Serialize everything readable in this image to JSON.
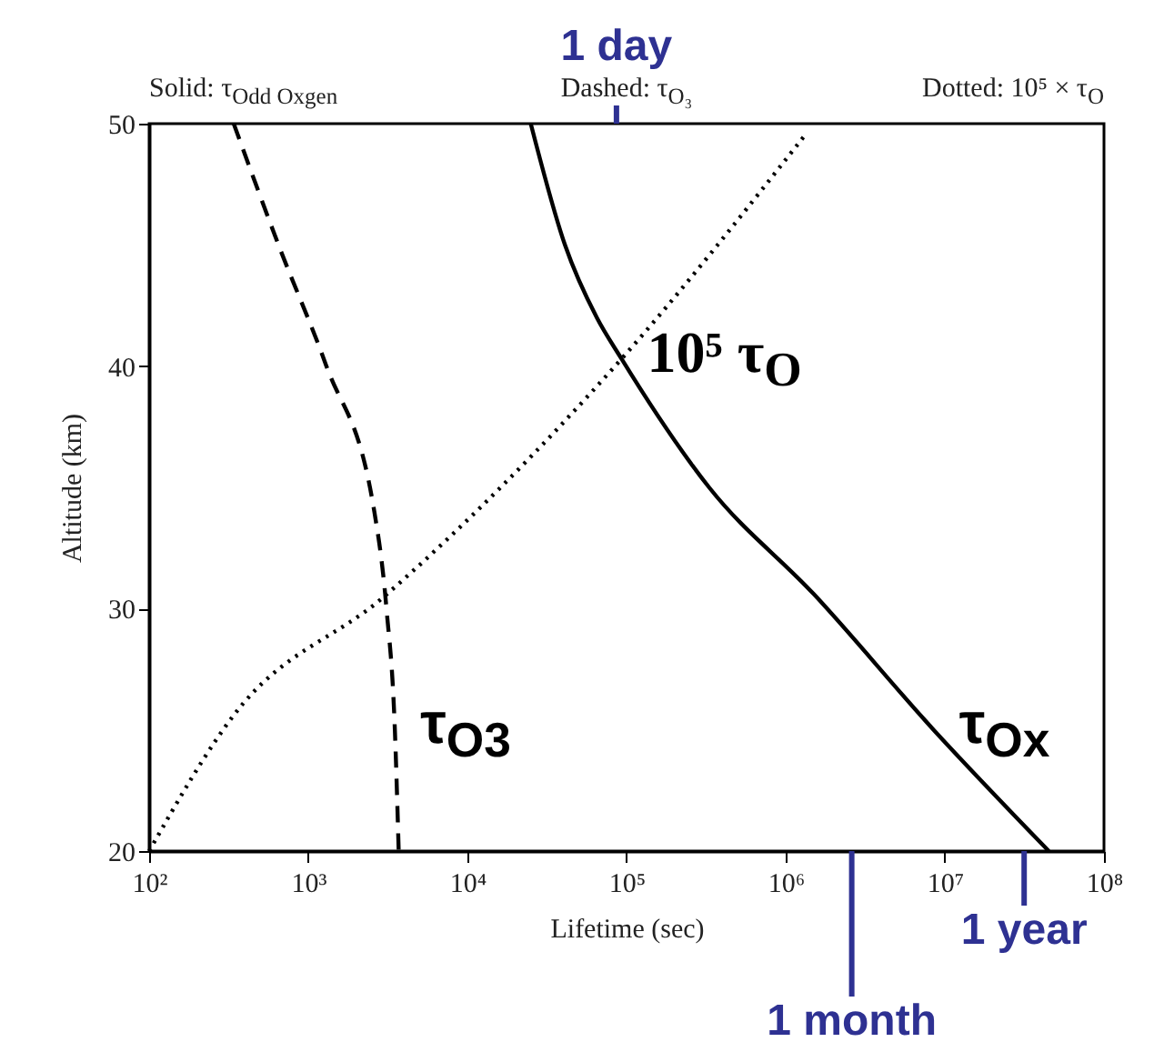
{
  "chart_data": {
    "type": "line",
    "xlabel": "Lifetime (sec)",
    "ylabel": "Altitude (km)",
    "log": "x",
    "xlim": [
      100,
      100000000
    ],
    "ylim": [
      20,
      50
    ],
    "xticks": [
      {
        "value": 100,
        "label": "10²"
      },
      {
        "value": 1000,
        "label": "10³"
      },
      {
        "value": 10000,
        "label": "10⁴"
      },
      {
        "value": 100000,
        "label": "10⁵"
      },
      {
        "value": 1000000,
        "label": "10⁶"
      },
      {
        "value": 10000000,
        "label": "10⁷"
      },
      {
        "value": 100000000,
        "label": "10⁸"
      }
    ],
    "yticks": [
      20,
      30,
      40,
      50
    ],
    "grid": false,
    "series": [
      {
        "name": "τ$_{Ox}$",
        "color": "#000000",
        "line_style": "solid",
        "x": [
          25000,
          41000,
          65000,
          93000,
          330000,
          1500000,
          8500000,
          45000000
        ],
        "values": [
          50,
          45,
          42,
          40.3,
          35,
          30.6,
          25,
          20
        ]
      },
      {
        "name": "τ$_{O3}$",
        "color": "#000000",
        "line_style": "dashed",
        "x": [
          340,
          650,
          1300,
          2600,
          3100,
          3500,
          3700
        ],
        "values": [
          50,
          45,
          40,
          34,
          30,
          25,
          20
        ]
      },
      {
        "name": "10⁵ τ$_{O}$",
        "color": "#000000",
        "line_style": "dotted",
        "x": [
          100,
          340,
          3000,
          93000,
          1350000
        ],
        "values": [
          20,
          25.6,
          30.5,
          40.3,
          49.6
        ]
      }
    ],
    "ref_lines": [
      {
        "axis": "x",
        "value": 86400,
        "label": "1 day",
        "color": "#2e3192"
      },
      {
        "axis": "x",
        "value": 2600000,
        "label": "1 month",
        "color": "#2e3192"
      },
      {
        "axis": "x",
        "value": 31500000,
        "label": "1 year",
        "color": "#2e3192"
      }
    ],
    "annotations": [
      "Solid: τ$_{Odd Oxgen}$",
      "Dashed: τ$_{O₃}$",
      "Dotted: 10⁵ × τ$_{O}$"
    ]
  }
}
